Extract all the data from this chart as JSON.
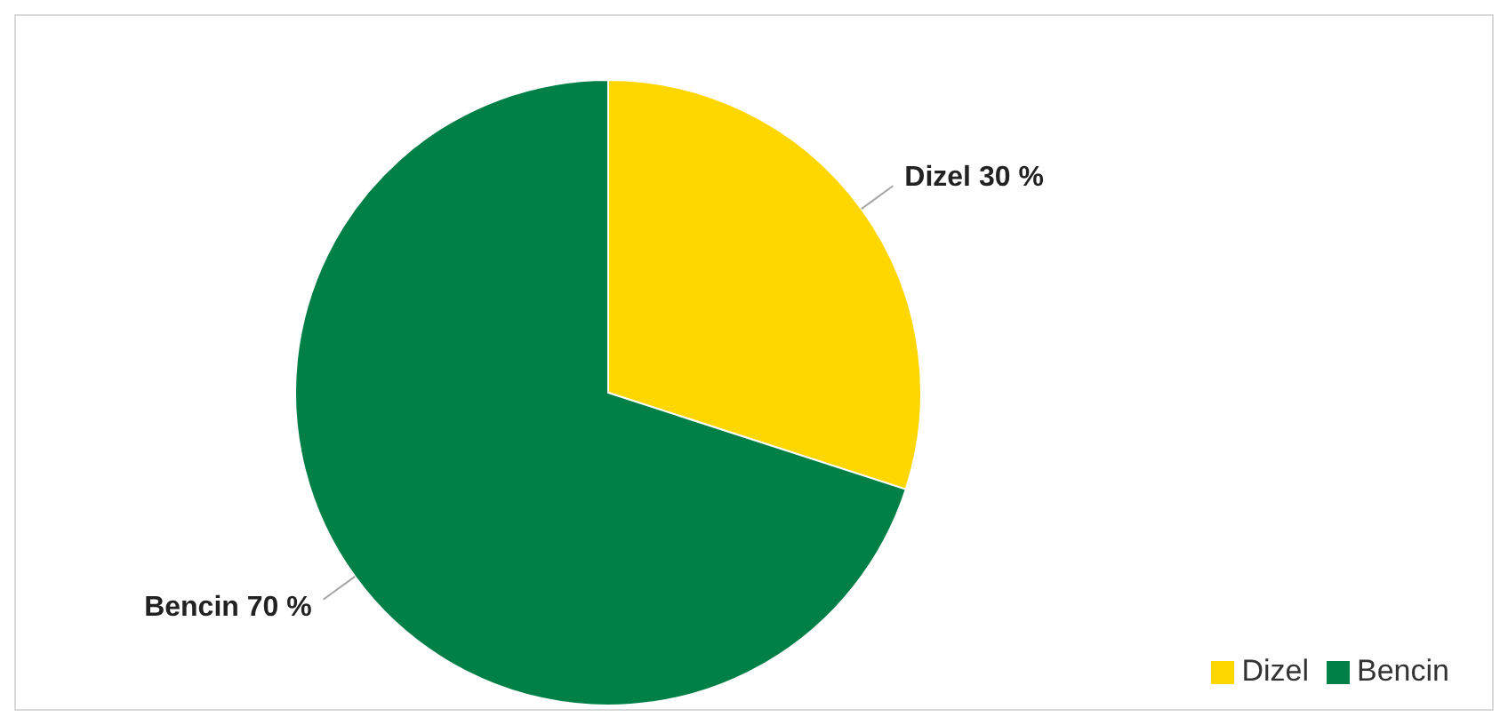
{
  "chart_data": {
    "type": "pie",
    "categories": [
      "Dizel",
      "Bencin"
    ],
    "values": [
      30,
      70
    ],
    "colors": [
      "#ffd700",
      "#008047"
    ],
    "value_labels": [
      "Dizel 30 %",
      "Bencin 70 %"
    ],
    "legend": "bottom right"
  }
}
